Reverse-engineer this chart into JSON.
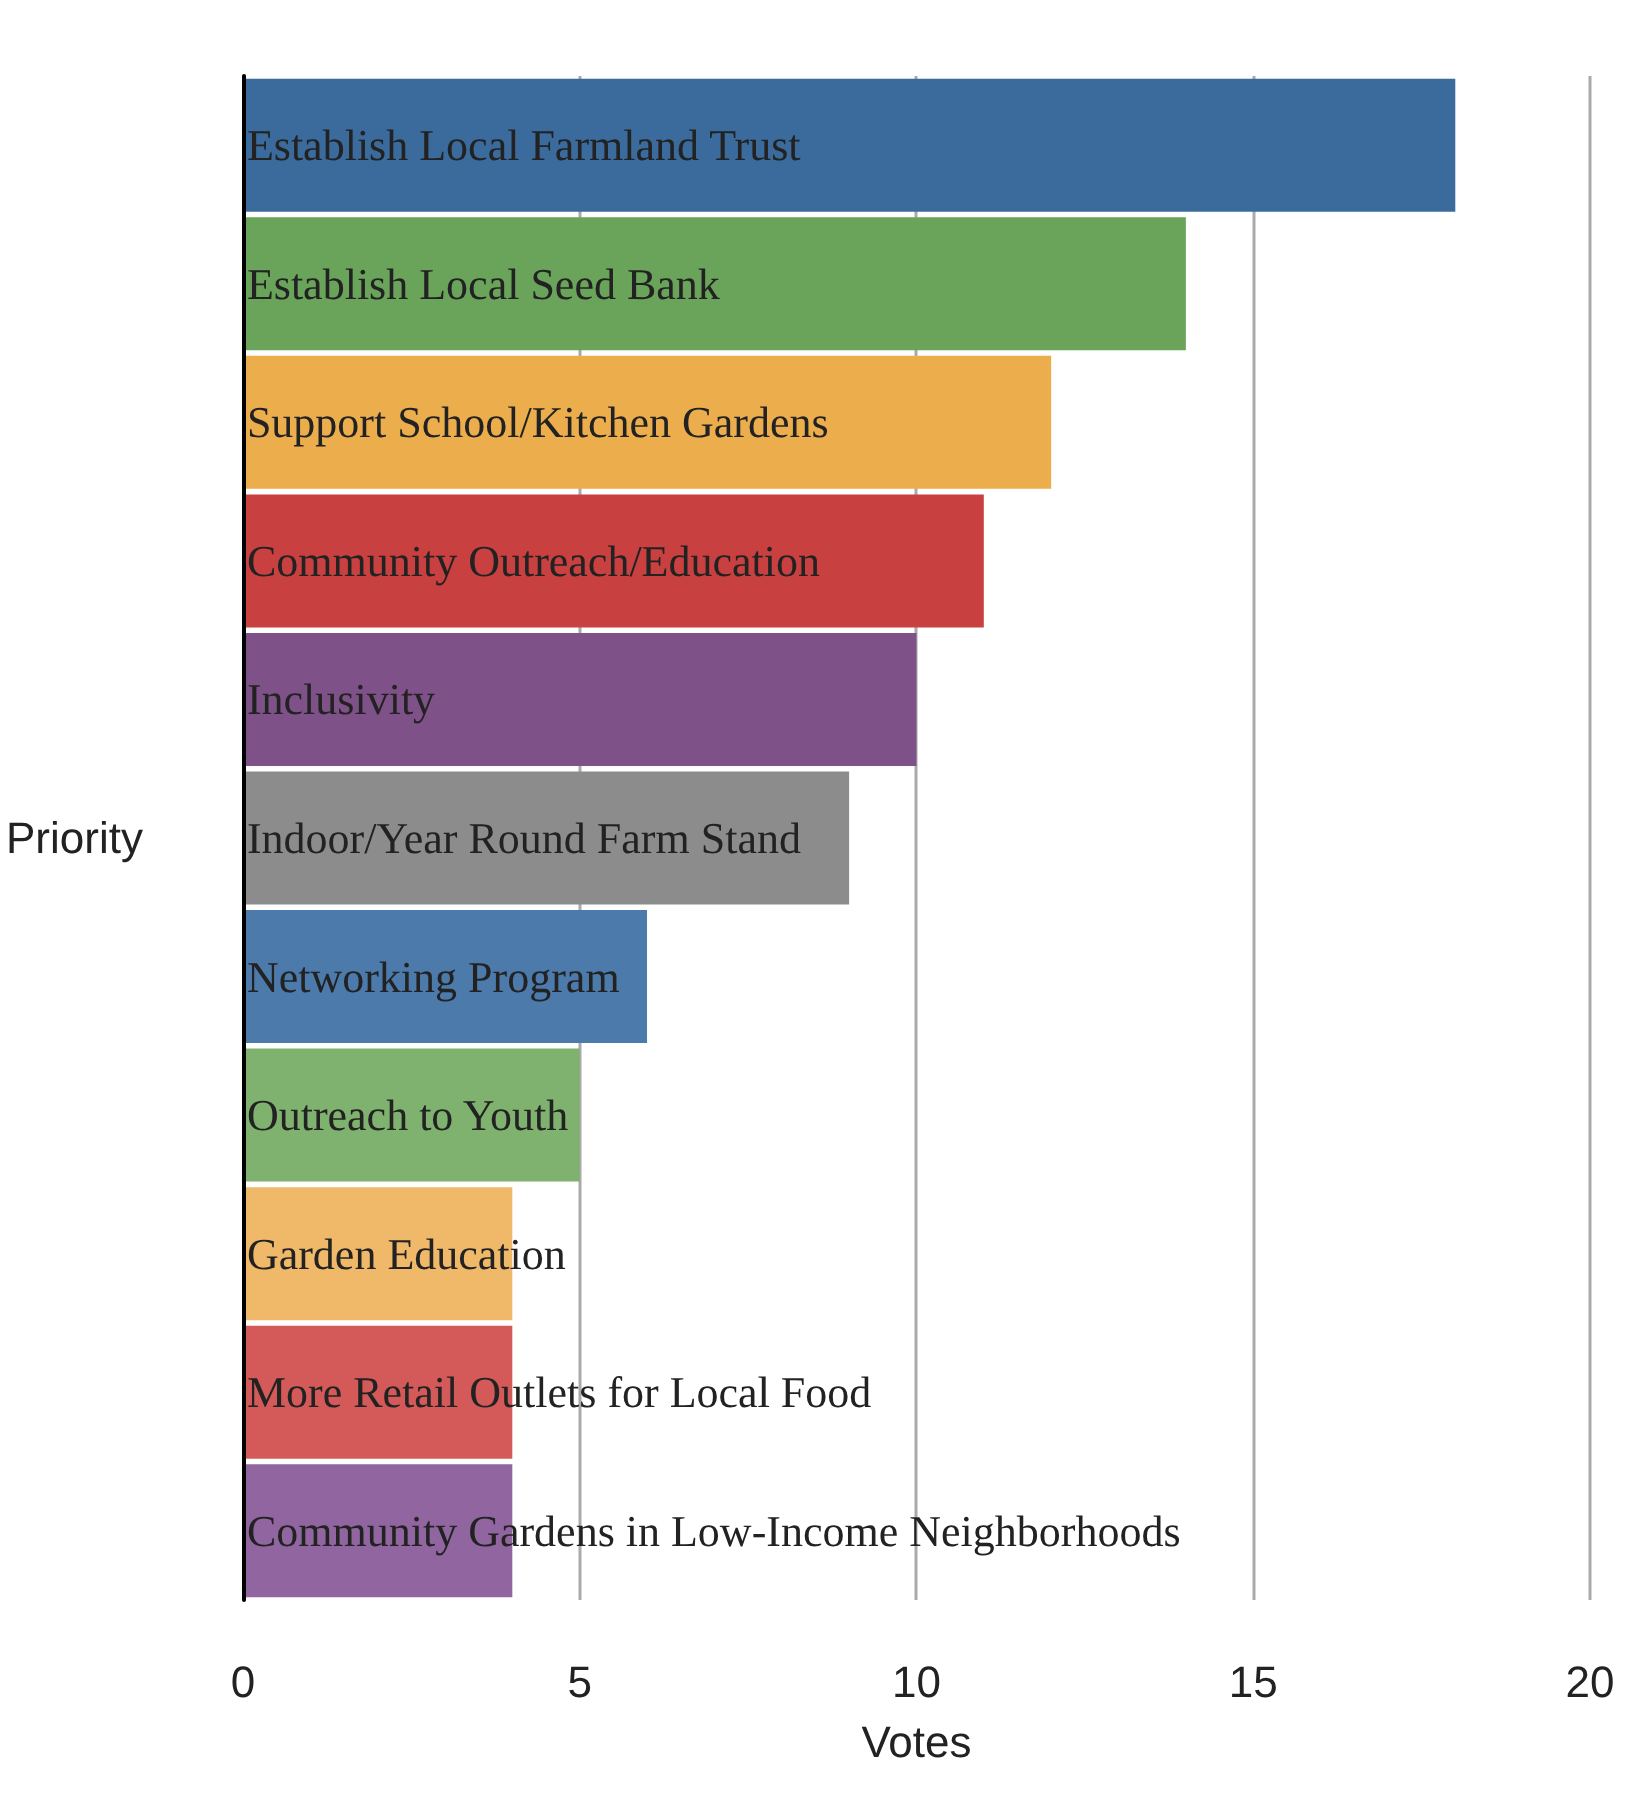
{
  "chart_data": {
    "type": "bar",
    "orientation": "horizontal",
    "xlabel": "Votes",
    "ylabel": "Priority",
    "categories": [
      "Establish Local Farmland Trust",
      "Establish Local Seed Bank",
      "Support School/Kitchen Gardens",
      "Community Outreach/Education",
      "Inclusivity",
      "Indoor/Year Round Farm Stand",
      "Networking Program",
      "Outreach to Youth",
      "Garden Education",
      "More Retail Outlets for Local Food",
      "Community Gardens in Low-Income Neighborhoods"
    ],
    "values": [
      18,
      14,
      12,
      11,
      10,
      9,
      6,
      5,
      4,
      4,
      4
    ],
    "colors": [
      "#3a6b9c",
      "#6aa35a",
      "#ecad4c",
      "#c94040",
      "#7e5189",
      "#8c8c8c",
      "#4b7aab",
      "#7fb26e",
      "#f0b96a",
      "#d45a5a",
      "#9166a0"
    ],
    "xlim": [
      0,
      20
    ],
    "xticks": [
      0,
      5,
      10,
      15,
      20
    ],
    "grid": "x"
  }
}
